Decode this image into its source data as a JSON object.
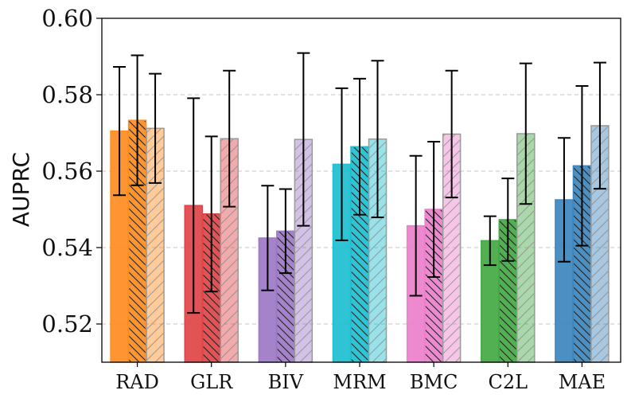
{
  "chart_data": {
    "type": "bar",
    "ylabel": "AUPRC",
    "ylim": [
      0.51,
      0.6
    ],
    "yticks": [
      "0.52",
      "0.54",
      "0.56",
      "0.58",
      "0.60"
    ],
    "grid": "horizontal dashed",
    "categories": [
      "RAD",
      "GLR",
      "BIV",
      "MRM",
      "BMC",
      "C2L",
      "MAE"
    ],
    "colors": [
      "#ff8c1f",
      "#e04448",
      "#9c78c6",
      "#1dbfcf",
      "#ec7fcb",
      "#43a943",
      "#3d85bd"
    ],
    "series": [
      {
        "style": "solid",
        "values": [
          0.5705,
          0.551,
          0.5425,
          0.5618,
          0.5457,
          0.5418,
          0.5525
        ],
        "errors": [
          0.0168,
          0.0281,
          0.0137,
          0.0199,
          0.0183,
          0.0064,
          0.0162
        ]
      },
      {
        "style": "backslash-hatch",
        "values": [
          0.5733,
          0.5488,
          0.5443,
          0.5664,
          0.55,
          0.5473,
          0.5614
        ],
        "errors": [
          0.017,
          0.0203,
          0.011,
          0.0178,
          0.0177,
          0.0108,
          0.0209
        ]
      },
      {
        "style": "light-slash-hatch",
        "values": [
          0.5712,
          0.5685,
          0.5683,
          0.5684,
          0.5697,
          0.5698,
          0.5719
        ],
        "errors": [
          0.0143,
          0.0178,
          0.0226,
          0.0205,
          0.0166,
          0.0184,
          0.0165
        ]
      }
    ]
  }
}
